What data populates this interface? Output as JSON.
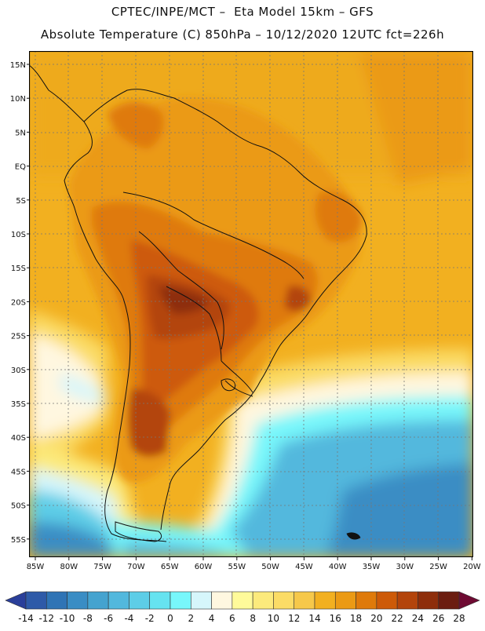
{
  "header": {
    "line1": "CPTEC/INPE/MCT –  Eta Model 15km – GFS",
    "line2": "Absolute Temperature (C) 850hPa – 10/12/2020 12UTC fct=226h"
  },
  "map": {
    "lat_labels": [
      "15N",
      "10N",
      "5N",
      "EQ",
      "5S",
      "10S",
      "15S",
      "20S",
      "25S",
      "30S",
      "35S",
      "40S",
      "45S",
      "50S",
      "55S"
    ],
    "lon_labels": [
      "85W",
      "80W",
      "75W",
      "70W",
      "65W",
      "60W",
      "55W",
      "50W",
      "45W",
      "40W",
      "35W",
      "30W",
      "25W",
      "20W"
    ]
  },
  "legend": {
    "ticks": [
      "-14",
      "-12",
      "-10",
      "-8",
      "-6",
      "-4",
      "-2",
      "0",
      "2",
      "4",
      "6",
      "8",
      "10",
      "12",
      "14",
      "16",
      "18",
      "20",
      "22",
      "24",
      "26",
      "28"
    ],
    "colors": [
      "#2a3f9a",
      "#2e5aa8",
      "#2f74b5",
      "#3a8dc4",
      "#45a3cf",
      "#52b8dd",
      "#5dcde7",
      "#66e3f0",
      "#78f7fb",
      "#d6f6fb",
      "#fff7e0",
      "#fffa9a",
      "#fcea7c",
      "#fbdc66",
      "#f6c84a",
      "#f2b020",
      "#eb9a14",
      "#df7a0a",
      "#cd5a08",
      "#b3440b",
      "#8e2e0b",
      "#6b1d10",
      "#6e0a32"
    ]
  }
}
